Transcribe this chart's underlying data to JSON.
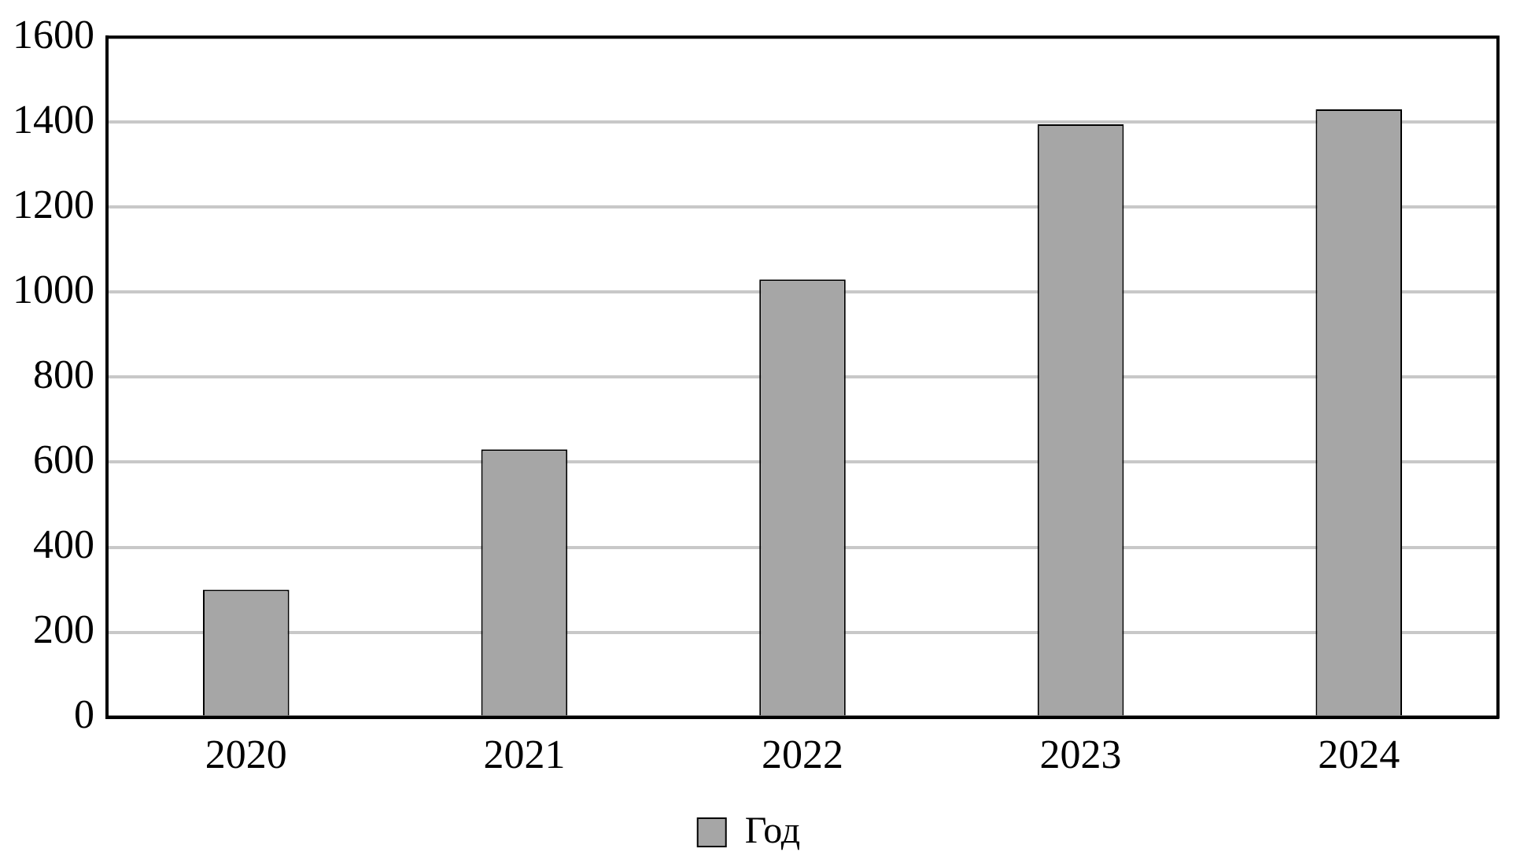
{
  "chart_data": {
    "type": "bar",
    "categories": [
      "2020",
      "2021",
      "2022",
      "2023",
      "2024"
    ],
    "series": [
      {
        "name": "Год",
        "color": "#a6a6a6",
        "values": [
          300,
          630,
          1030,
          1395,
          1430
        ]
      }
    ],
    "ylim": [
      0,
      1600
    ],
    "yticks": [
      0,
      200,
      400,
      600,
      800,
      1000,
      1200,
      1400,
      1600
    ],
    "grid": "y",
    "legend": "bottom"
  }
}
